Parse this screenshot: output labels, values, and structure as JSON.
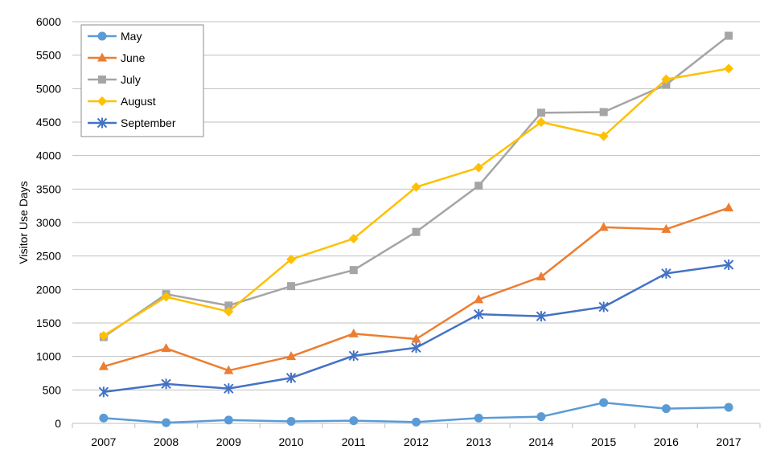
{
  "chart_data": {
    "type": "line",
    "title": "",
    "xlabel": "",
    "ylabel": "Visitor Use Days",
    "ylim": [
      0,
      6000
    ],
    "yticks": [
      "0",
      "500",
      "1000",
      "1500",
      "2000",
      "2500",
      "3000",
      "3500",
      "4000",
      "4500",
      "5000",
      "5500",
      "6000"
    ],
    "categories": [
      "2007",
      "2008",
      "2009",
      "2010",
      "2011",
      "2012",
      "2013",
      "2014",
      "2015",
      "2016",
      "2017"
    ],
    "grid": true,
    "legend_position": "top-left",
    "series": [
      {
        "name": "May",
        "color": "#5B9BD5",
        "marker": "circle",
        "values": [
          80,
          10,
          50,
          30,
          40,
          20,
          80,
          100,
          310,
          220,
          240
        ]
      },
      {
        "name": "June",
        "color": "#ED7D31",
        "marker": "triangle",
        "values": [
          850,
          1120,
          790,
          1000,
          1340,
          1260,
          1850,
          2190,
          2930,
          2900,
          3220
        ]
      },
      {
        "name": "July",
        "color": "#A5A5A5",
        "marker": "square",
        "values": [
          1290,
          1930,
          1760,
          2050,
          2290,
          2860,
          3550,
          4640,
          4650,
          5060,
          5790
        ]
      },
      {
        "name": "August",
        "color": "#FFC000",
        "marker": "diamond",
        "values": [
          1310,
          1890,
          1670,
          2450,
          2760,
          3530,
          3820,
          4500,
          4290,
          5140,
          5300
        ]
      },
      {
        "name": "September",
        "color": "#4472C4",
        "marker": "asterisk",
        "values": [
          470,
          590,
          520,
          680,
          1010,
          1130,
          1630,
          1600,
          1740,
          2240,
          2370
        ]
      }
    ]
  }
}
